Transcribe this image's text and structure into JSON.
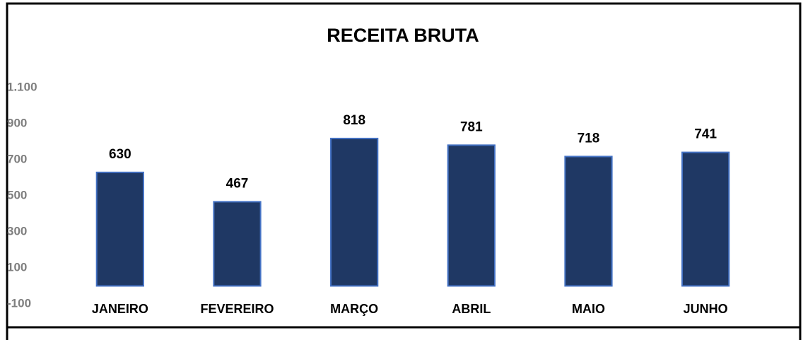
{
  "chart_data": {
    "type": "bar",
    "title": "RECEITA BRUTA",
    "categories": [
      "JANEIRO",
      "FEVEREIRO",
      "MARÇO",
      "ABRIL",
      "MAIO",
      "JUNHO"
    ],
    "values": [
      630,
      467,
      818,
      781,
      718,
      741
    ],
    "color": "#1f3864",
    "edge_color": "#4472c4",
    "ylim": [
      -100,
      1100
    ],
    "yticks": [
      -100,
      100,
      300,
      500,
      700,
      900,
      {
        "value": 1100,
        "label": "1.100"
      }
    ],
    "grid": false
  }
}
